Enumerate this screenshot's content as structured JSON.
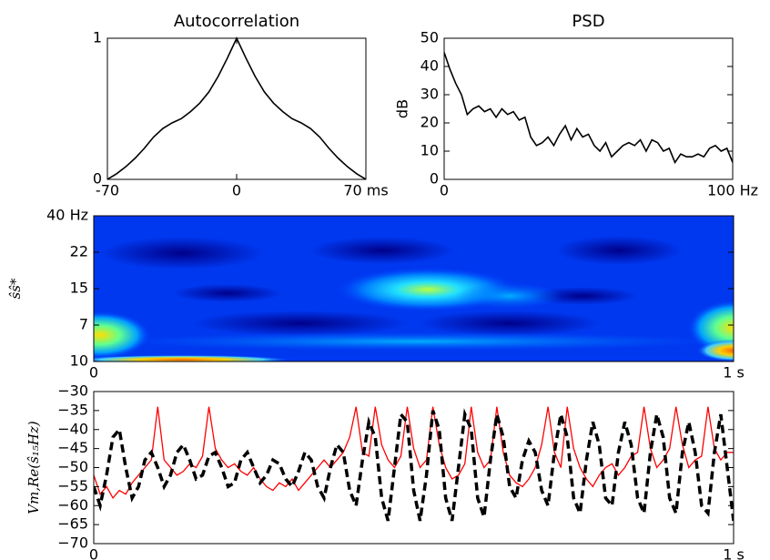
{
  "chart_data": [
    {
      "type": "line",
      "title": "Autocorrelation",
      "color": "#000000",
      "x": [
        -70,
        -65,
        -60,
        -55,
        -50,
        -45,
        -40,
        -35,
        -30,
        -25,
        -20,
        -15,
        -10,
        -5,
        0,
        5,
        10,
        15,
        20,
        25,
        30,
        35,
        40,
        45,
        50,
        55,
        60,
        65,
        70
      ],
      "values": [
        0,
        0.04,
        0.09,
        0.15,
        0.22,
        0.3,
        0.36,
        0.4,
        0.43,
        0.48,
        0.54,
        0.62,
        0.73,
        0.86,
        1,
        0.86,
        0.73,
        0.62,
        0.54,
        0.48,
        0.43,
        0.4,
        0.36,
        0.3,
        0.22,
        0.15,
        0.09,
        0.04,
        0
      ],
      "xlim": [
        -70,
        70
      ],
      "xticks": [
        {
          "value": -70,
          "label": "-70"
        },
        0,
        {
          "value": 70,
          "label": "70 ms"
        }
      ],
      "ylim": [
        0,
        1
      ],
      "yticks": [
        0,
        1
      ]
    },
    {
      "type": "line",
      "title": "PSD",
      "y_label": "dB",
      "color": "#000000",
      "x": [
        0,
        2,
        4,
        6,
        8,
        10,
        12,
        14,
        16,
        18,
        20,
        22,
        24,
        26,
        28,
        30,
        32,
        34,
        36,
        38,
        40,
        42,
        44,
        46,
        48,
        50,
        52,
        54,
        56,
        58,
        60,
        62,
        64,
        66,
        68,
        70,
        72,
        74,
        76,
        78,
        80,
        82,
        84,
        86,
        88,
        90,
        92,
        94,
        96,
        98,
        100
      ],
      "values": [
        45,
        39,
        34,
        30,
        23,
        25,
        26,
        24,
        25,
        22,
        25,
        23,
        24,
        21,
        22,
        15,
        12,
        13,
        15,
        12,
        16,
        19,
        14,
        18,
        15,
        16,
        12,
        10,
        13,
        8,
        10,
        12,
        13,
        12,
        14,
        10,
        14,
        13,
        10,
        11,
        6,
        9,
        8,
        8,
        9,
        8,
        11,
        12,
        10,
        11,
        6
      ],
      "xlim": [
        0,
        100
      ],
      "xticks": [
        0,
        {
          "value": 100,
          "label": "100 Hz"
        }
      ],
      "ylim": [
        0,
        50
      ],
      "yticks": [
        0,
        10,
        20,
        30,
        40,
        50
      ]
    },
    {
      "type": "heatmap",
      "y_label": "ŝŝ*",
      "xlim": [
        0,
        1
      ],
      "xticks": [
        0,
        {
          "value": 1,
          "label": "1 s"
        }
      ],
      "ylim": [
        0,
        4
      ],
      "yticks": [
        {
          "value": 0,
          "label": "10"
        },
        {
          "value": 1,
          "label": "7"
        },
        {
          "value": 2,
          "label": "15"
        },
        {
          "value": 3,
          "label": "22"
        },
        {
          "value": 4,
          "label": "40 Hz"
        }
      ]
    },
    {
      "type": "line",
      "y_label": "Vm,Re(ŝ₁₅Hz)",
      "x": [
        0,
        0.01,
        0.02,
        0.03,
        0.04,
        0.05,
        0.06,
        0.07,
        0.08,
        0.09,
        0.1,
        0.11,
        0.12,
        0.13,
        0.14,
        0.15,
        0.16,
        0.17,
        0.18,
        0.19,
        0.2,
        0.21,
        0.22,
        0.23,
        0.24,
        0.25,
        0.26,
        0.27,
        0.28,
        0.29,
        0.3,
        0.31,
        0.32,
        0.33,
        0.34,
        0.35,
        0.36,
        0.37,
        0.38,
        0.39,
        0.4,
        0.41,
        0.42,
        0.43,
        0.44,
        0.45,
        0.46,
        0.47,
        0.48,
        0.49,
        0.5,
        0.51,
        0.52,
        0.53,
        0.54,
        0.55,
        0.56,
        0.57,
        0.58,
        0.59,
        0.6,
        0.61,
        0.62,
        0.63,
        0.64,
        0.65,
        0.66,
        0.67,
        0.68,
        0.69,
        0.7,
        0.71,
        0.72,
        0.73,
        0.74,
        0.75,
        0.76,
        0.77,
        0.78,
        0.79,
        0.8,
        0.81,
        0.82,
        0.83,
        0.84,
        0.85,
        0.86,
        0.87,
        0.88,
        0.89,
        0.9,
        0.91,
        0.92,
        0.93,
        0.94,
        0.95,
        0.96,
        0.97,
        0.98,
        0.99,
        1
      ],
      "series": [
        {
          "color": "#ff0000",
          "dashed": false,
          "values": [
            -52,
            -57,
            -55,
            -58,
            -56,
            -57,
            -54,
            -52,
            -50,
            -48,
            -34,
            -48,
            -50,
            -52,
            -51,
            -49,
            -50,
            -47,
            -34,
            -45,
            -48,
            -50,
            -49,
            -51,
            -52,
            -50,
            -53,
            -55,
            -56,
            -54,
            -55,
            -53,
            -56,
            -54,
            -52,
            -50,
            -48,
            -50,
            -48,
            -46,
            -42,
            -34,
            -46,
            -47,
            -34,
            -44,
            -48,
            -50,
            -47,
            -34,
            -45,
            -50,
            -48,
            -34,
            -44,
            -50,
            -53,
            -52,
            -49,
            -34,
            -46,
            -50,
            -48,
            -34,
            -46,
            -52,
            -54,
            -55,
            -53,
            -50,
            -44,
            -34,
            -46,
            -50,
            -34,
            -45,
            -50,
            -53,
            -55,
            -52,
            -50,
            -49,
            -52,
            -50,
            -47,
            -46,
            -34,
            -45,
            -50,
            -48,
            -45,
            -34,
            -44,
            -50,
            -48,
            -47,
            -34,
            -45,
            -48,
            -46,
            -46
          ]
        },
        {
          "color": "#000000",
          "dashed": true,
          "values": [
            -55,
            -60,
            -52,
            -42,
            -40,
            -50,
            -58,
            -55,
            -48,
            -46,
            -50,
            -55,
            -52,
            -46,
            -44,
            -48,
            -53,
            -52,
            -47,
            -46,
            -50,
            -55,
            -54,
            -48,
            -46,
            -50,
            -54,
            -52,
            -48,
            -49,
            -53,
            -55,
            -51,
            -46,
            -48,
            -55,
            -58,
            -50,
            -44,
            -46,
            -56,
            -60,
            -48,
            -38,
            -42,
            -58,
            -64,
            -50,
            -36,
            -38,
            -56,
            -64,
            -52,
            -35,
            -40,
            -58,
            -64,
            -50,
            -36,
            -40,
            -58,
            -63,
            -48,
            -36,
            -42,
            -55,
            -58,
            -48,
            -43,
            -46,
            -56,
            -60,
            -46,
            -36,
            -42,
            -58,
            -62,
            -48,
            -38,
            -44,
            -58,
            -60,
            -46,
            -38,
            -44,
            -58,
            -62,
            -46,
            -36,
            -42,
            -58,
            -62,
            -46,
            -38,
            -46,
            -60,
            -62,
            -46,
            -36,
            -50,
            -64
          ]
        }
      ],
      "xlim": [
        0,
        1
      ],
      "xticks": [
        0,
        {
          "value": 1,
          "label": "1 s"
        }
      ],
      "ylim": [
        -70,
        -30
      ],
      "yticks": [
        {
          "value": -70,
          "label": "−70"
        },
        {
          "value": -65,
          "label": "−65"
        },
        {
          "value": -60,
          "label": "−60"
        },
        {
          "value": -55,
          "label": "−55"
        },
        {
          "value": -50,
          "label": "−50"
        },
        {
          "value": -45,
          "label": "−45"
        },
        {
          "value": -40,
          "label": "−40"
        },
        {
          "value": -35,
          "label": "−35"
        },
        {
          "value": -30,
          "label": "−30"
        }
      ]
    }
  ]
}
